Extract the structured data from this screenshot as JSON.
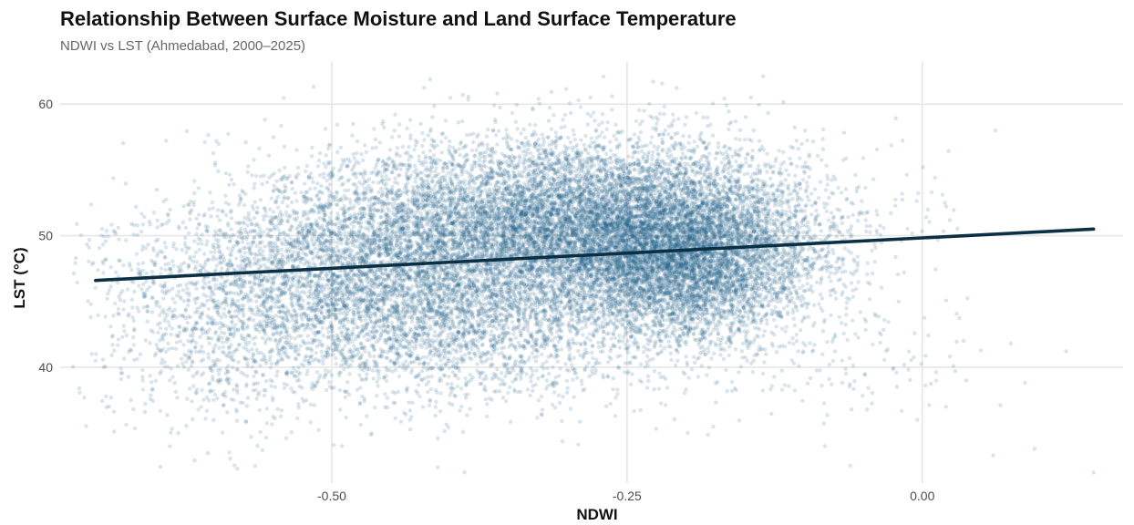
{
  "chart_data": {
    "type": "scatter",
    "title": "Relationship Between Surface Moisture and Land Surface Temperature",
    "subtitle": "NDWI vs LST (Ahmedabad, 2000–2025)",
    "xlabel": "NDWI",
    "ylabel": "LST (°C)",
    "xlim": [
      -0.73,
      0.17
    ],
    "ylim": [
      31.2,
      63.2
    ],
    "x_ticks": [
      {
        "value": -0.5,
        "label": "-0.50"
      },
      {
        "value": -0.25,
        "label": "-0.25"
      },
      {
        "value": 0.0,
        "label": "0.00"
      }
    ],
    "y_ticks": [
      {
        "value": 40,
        "label": "40"
      },
      {
        "value": 50,
        "label": "50"
      },
      {
        "value": 60,
        "label": "60"
      }
    ],
    "grid": true,
    "legend": "none",
    "point_color": "#1f5f8b",
    "point_opacity": 0.17,
    "trend_line": {
      "x": [
        -0.7,
        0.145
      ],
      "y": [
        46.6,
        50.5
      ],
      "color": "#0b3045"
    },
    "series": [
      {
        "clusters": [
          {
            "cx": -0.3,
            "cy": 50.8,
            "sx": 0.1,
            "sy": 3.3,
            "n": 9000
          },
          {
            "cx": -0.2,
            "cy": 48.2,
            "sx": 0.055,
            "sy": 3.2,
            "n": 5500
          },
          {
            "cx": -0.47,
            "cy": 46.5,
            "sx": 0.08,
            "sy": 4.0,
            "n": 3600
          },
          {
            "cx": -0.58,
            "cy": 44.0,
            "sx": 0.07,
            "sy": 4.4,
            "n": 1200
          },
          {
            "cx": -0.36,
            "cy": 43.5,
            "sx": 0.08,
            "sy": 3.0,
            "n": 1500
          },
          {
            "cx": -0.04,
            "cy": 40.0,
            "sx": 0.06,
            "sy": 3.0,
            "n": 110
          }
        ],
        "points": [
          {
            "x": -0.27,
            "y": 62.1
          },
          {
            "x": -0.36,
            "y": 60.8
          },
          {
            "x": -0.325,
            "y": 60.4
          },
          {
            "x": -0.145,
            "y": 60.5
          },
          {
            "x": -0.695,
            "y": 50.0
          },
          {
            "x": -0.7,
            "y": 40.5
          },
          {
            "x": -0.58,
            "y": 32.3
          },
          {
            "x": -0.565,
            "y": 32.5
          },
          {
            "x": 0.145,
            "y": 32.0
          },
          {
            "x": 0.095,
            "y": 33.8
          },
          {
            "x": 0.06,
            "y": 33.3
          },
          {
            "x": -0.05,
            "y": 55.9
          },
          {
            "x": -0.075,
            "y": 54.5
          },
          {
            "x": 0.035,
            "y": 42.0
          },
          {
            "x": 0.075,
            "y": 41.8
          },
          {
            "x": -0.66,
            "y": 39.0
          },
          {
            "x": -0.67,
            "y": 37.5
          },
          {
            "x": -0.63,
            "y": 35.0
          },
          {
            "x": -0.02,
            "y": 45.0
          },
          {
            "x": 0.02,
            "y": 37.0
          },
          {
            "x": -0.09,
            "y": 52.5
          }
        ]
      }
    ]
  }
}
